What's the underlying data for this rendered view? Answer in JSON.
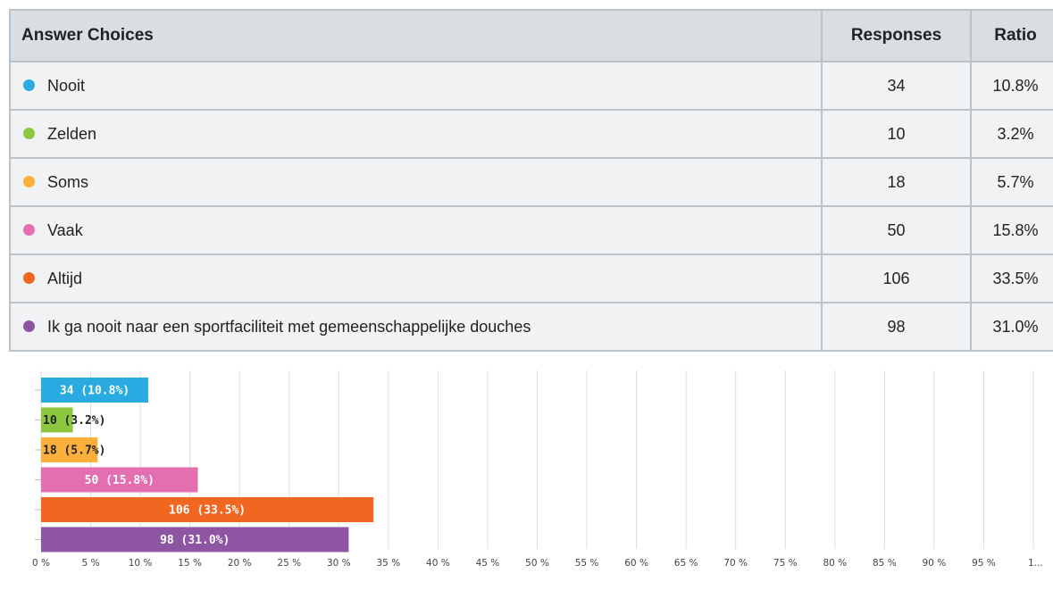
{
  "table": {
    "headers": {
      "choice": "Answer Choices",
      "responses": "Responses",
      "ratio": "Ratio"
    },
    "rows": [
      {
        "label": "Nooit",
        "responses": "34",
        "ratio": "10.8%",
        "color": "#29abe2"
      },
      {
        "label": "Zelden",
        "responses": "10",
        "ratio": "3.2%",
        "color": "#8dc63f"
      },
      {
        "label": "Soms",
        "responses": "18",
        "ratio": "5.7%",
        "color": "#fbb03b"
      },
      {
        "label": "Vaak",
        "responses": "50",
        "ratio": "15.8%",
        "color": "#e46fb0"
      },
      {
        "label": "Altijd",
        "responses": "106",
        "ratio": "33.5%",
        "color": "#f16722"
      },
      {
        "label": "Ik ga nooit naar een sportfaciliteit met gemeenschappelijke douches",
        "responses": "98",
        "ratio": "31.0%",
        "color": "#8e55a3"
      }
    ]
  },
  "chart_data": {
    "type": "bar",
    "orientation": "horizontal",
    "categories": [
      "Nooit",
      "Zelden",
      "Soms",
      "Vaak",
      "Altijd",
      "Ik ga nooit naar een sportfaciliteit met gemeenschappelijke douches"
    ],
    "values": [
      10.8,
      3.2,
      5.7,
      15.8,
      33.5,
      31.0
    ],
    "data_labels": [
      "34 (10.8%)",
      "10 (3.2%)",
      "18 (5.7%)",
      "50 (15.8%)",
      "106 (33.5%)",
      "98 (31.0%)"
    ],
    "colors": [
      "#29abe2",
      "#8dc63f",
      "#fbb03b",
      "#e46fb0",
      "#f16722",
      "#8e55a3"
    ],
    "x_ticks": [
      "0 %",
      "5 %",
      "10 %",
      "15 %",
      "20 %",
      "25 %",
      "30 %",
      "35 %",
      "40 %",
      "45 %",
      "50 %",
      "55 %",
      "60 %",
      "65 %",
      "70 %",
      "75 %",
      "80 %",
      "85 %",
      "90 %",
      "95 %",
      "1..."
    ],
    "xlim": [
      0,
      100
    ],
    "grid": true,
    "legend": "none",
    "title": "",
    "xlabel": "",
    "ylabel": ""
  }
}
